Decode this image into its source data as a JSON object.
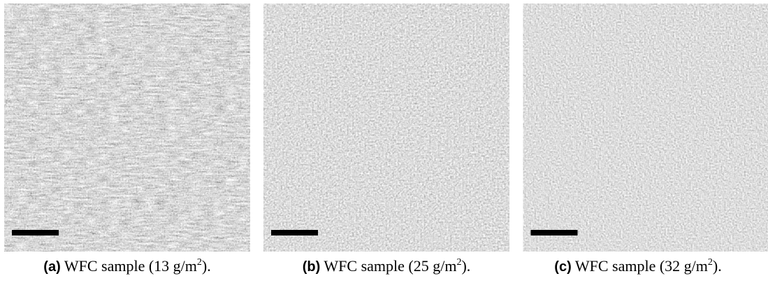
{
  "panels": [
    {
      "label": "(a)",
      "text": "WFC sample (13 g/m",
      "superscript": "2",
      "end": ")."
    },
    {
      "label": "(b)",
      "text": "WFC sample (25 g/m",
      "superscript": "2",
      "end": ")."
    },
    {
      "label": "(c)",
      "text": "WFC sample (32 g/m",
      "superscript": "2",
      "end": ")."
    }
  ]
}
